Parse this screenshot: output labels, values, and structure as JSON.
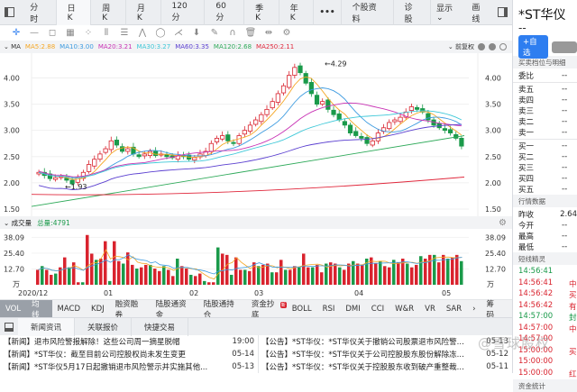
{
  "header": {
    "tabs": [
      {
        "label": "分时",
        "active": false
      },
      {
        "label": "日K",
        "active": true
      },
      {
        "label": "周K",
        "active": false
      },
      {
        "label": "月K",
        "active": false
      },
      {
        "label": "120分",
        "active": false
      },
      {
        "label": "60分",
        "active": false
      },
      {
        "label": "季K",
        "active": false
      },
      {
        "label": "年K",
        "active": false
      },
      {
        "label": "•••",
        "active": false
      },
      {
        "label": "个股资料",
        "active": false
      },
      {
        "label": "诊股",
        "active": false
      }
    ],
    "display_label": "显示 ⌄",
    "draw_label": "画线"
  },
  "toolbar": {
    "tools": [
      "crosshair-icon",
      "line-icon",
      "rect-icon",
      "fibonacci-icon",
      "pattern-icon",
      "vertical-lines-icon",
      "horizontal-lines-icon",
      "wave-icon",
      "circle-icon",
      "pitchfork-icon",
      "arrow-down-icon",
      "pen-icon",
      "magnet-icon",
      "trash-icon",
      "split-icon",
      "settings-icon"
    ],
    "tool_glyphs": [
      "✛",
      "—",
      "◻",
      "▦",
      "⁘",
      "⦀",
      "☰",
      "⋀",
      "◯",
      "⋌",
      "⬇",
      "✎",
      "∩",
      "🗑",
      "⇹",
      "⚙"
    ]
  },
  "ma_legend": {
    "label": "⌄ MA",
    "items": [
      {
        "text": "MA5:2.88",
        "color": "#f5a623"
      },
      {
        "text": "MA10:3.00",
        "color": "#3d9be0"
      },
      {
        "text": "MA20:3.21",
        "color": "#c832b4"
      },
      {
        "text": "MA30:3.27",
        "color": "#3ec8d8"
      },
      {
        "text": "MA60:3.35",
        "color": "#5a3fd0"
      },
      {
        "text": "MA120:2.68",
        "color": "#2faa5a"
      },
      {
        "text": "MA250:2.11",
        "color": "#e0283c"
      }
    ],
    "adjust_label": "⌄ 前复权"
  },
  "price_axis": {
    "labels": [
      "4.00",
      "3.50",
      "3.00",
      "2.50",
      "2.00",
      "1.50"
    ],
    "high_label": "4.29",
    "low_label": "1.93"
  },
  "volume": {
    "label": "⌄ 成交量",
    "total": "总量:4791",
    "axis": [
      "38.09",
      "25.40",
      "12.70",
      "万"
    ]
  },
  "x_axis": {
    "labels": [
      {
        "text": "2020/12",
        "x": 20
      },
      {
        "text": "01",
        "x": 115
      },
      {
        "text": "02",
        "x": 210
      },
      {
        "text": "03",
        "x": 282
      },
      {
        "text": "04",
        "x": 393
      },
      {
        "text": "05",
        "x": 490
      }
    ]
  },
  "indicators": {
    "items": [
      {
        "label": "VOL",
        "selected": true
      },
      {
        "label": "均线",
        "selected": true
      },
      {
        "label": "MACD"
      },
      {
        "label": "KDJ"
      },
      {
        "label": "融资融券"
      },
      {
        "label": "陆股通资金"
      },
      {
        "label": "陆股通持仓"
      },
      {
        "label": "资金抄底",
        "badge": "新"
      },
      {
        "label": "BOLL"
      },
      {
        "label": "RSI"
      },
      {
        "label": "DMI"
      },
      {
        "label": "CCI"
      },
      {
        "label": "W&R"
      },
      {
        "label": "VR"
      },
      {
        "label": "SAR"
      },
      {
        "label": "›"
      }
    ],
    "chips_label": "筹码"
  },
  "news_tabs": [
    "新闻资讯",
    "关联报价",
    "快捷交易"
  ],
  "news_left": [
    {
      "title": "【新闻】退市风险警报解除！这些公司周一摘星脱帽",
      "date": "19:00"
    },
    {
      "title": "【新闻】*ST华仪：截至目前公司控股权尚未发生变更",
      "date": "05-14"
    },
    {
      "title": "【新闻】*ST华仪5月17日起撤销退市风险警示并实施其他...",
      "date": "05-13"
    }
  ],
  "news_right": [
    {
      "title": "【公告】*ST华仪：*ST华仪关于撤销公司股票退市风险警...",
      "date": "05-13"
    },
    {
      "title": "【公告】*ST华仪：*ST华仪关于公司控股股东股份解除冻...",
      "date": "05-12"
    },
    {
      "title": "【公告】*ST华仪：*ST华仪关于控股股东收到破产重整裁...",
      "date": "05-11"
    }
  ],
  "sidebar": {
    "stock_name": "*ST华仪",
    "price": "--",
    "add_label": "+自选",
    "orderbook_title": "买卖档位与明细",
    "ratio": {
      "k": "委比",
      "v": "--"
    },
    "asks": [
      {
        "k": "卖五",
        "v": "--"
      },
      {
        "k": "卖四",
        "v": "--"
      },
      {
        "k": "卖三",
        "v": "--"
      },
      {
        "k": "卖二",
        "v": "--"
      },
      {
        "k": "卖一",
        "v": "--"
      }
    ],
    "bids": [
      {
        "k": "买一",
        "v": "--"
      },
      {
        "k": "买二",
        "v": "--"
      },
      {
        "k": "买三",
        "v": "--"
      },
      {
        "k": "买四",
        "v": "--"
      },
      {
        "k": "买五",
        "v": "--"
      }
    ],
    "quote_title": "行情数据",
    "quotes": [
      {
        "k": "昨收",
        "v": "2.64"
      },
      {
        "k": "今开",
        "v": "--"
      },
      {
        "k": "最高",
        "v": "--"
      },
      {
        "k": "最低",
        "v": "--"
      }
    ],
    "sprite_title": "短线精灵",
    "sprites": [
      {
        "t": "14:56:41",
        "c": "#1a9a4a",
        "x": ""
      },
      {
        "t": "14:56:41",
        "c": "#d9232e",
        "x": "中"
      },
      {
        "t": "14:56:42",
        "c": "#d9232e",
        "x": "买"
      },
      {
        "t": "14:56:42",
        "c": "#d9232e",
        "x": "有"
      },
      {
        "t": "14:57:00",
        "c": "#1a9a4a",
        "x": "封"
      },
      {
        "t": "14:57:00",
        "c": "#d9232e",
        "x": "中"
      },
      {
        "t": "14:57:00",
        "c": "#d9232e",
        "x": ""
      },
      {
        "t": "15:00:00",
        "c": "#d9232e",
        "x": "买"
      },
      {
        "t": "15:00:00",
        "c": "#d9232e",
        "x": ""
      },
      {
        "t": "15:00:00",
        "c": "#d9232e",
        "x": "红"
      }
    ],
    "footer_title": "资金统计"
  },
  "watermark": "@雪球股权",
  "chart_data": [
    {
      "type": "candlestick",
      "title": "*ST华仪 日K",
      "xlabel": "",
      "ylabel": "",
      "categories": [
        "2020/12",
        "01",
        "02",
        "03",
        "04",
        "05"
      ],
      "ylim": [
        1.5,
        4.3
      ],
      "y_ticks": [
        1.5,
        2.0,
        2.5,
        3.0,
        3.5,
        4.0
      ],
      "annotations": [
        {
          "text": "4.29",
          "type": "high"
        },
        {
          "text": "1.93",
          "type": "low"
        }
      ],
      "close_approx": [
        2.2,
        2.14,
        2.08,
        2.1,
        2.12,
        2.05,
        1.98,
        2.1,
        2.2,
        2.35,
        2.45,
        2.55,
        2.65,
        2.8,
        2.72,
        2.6,
        2.65,
        2.55,
        2.5,
        2.55,
        2.6,
        2.52,
        2.55,
        2.5,
        2.48,
        2.52,
        2.5,
        2.45,
        2.48,
        2.55,
        2.6,
        2.75,
        2.85,
        2.9,
        2.8,
        2.75,
        2.9,
        3.0,
        3.1,
        3.2,
        3.3,
        3.4,
        3.55,
        3.7,
        3.85,
        4.05,
        4.2,
        4.1,
        3.9,
        3.7,
        3.5,
        3.55,
        3.4,
        3.3,
        3.2,
        3.1,
        2.95,
        2.9,
        2.85,
        2.75,
        2.8,
        2.95,
        3.05,
        3.15,
        3.2,
        3.25,
        3.35,
        3.45,
        3.4,
        3.35,
        3.2,
        3.1,
        3.05,
        3.0,
        2.95,
        2.85,
        2.7
      ],
      "series": [
        {
          "name": "MA5",
          "last": 2.88,
          "color": "#f5a623"
        },
        {
          "name": "MA10",
          "last": 3.0,
          "color": "#3d9be0"
        },
        {
          "name": "MA20",
          "last": 3.21,
          "color": "#c832b4"
        },
        {
          "name": "MA30",
          "last": 3.27,
          "color": "#3ec8d8"
        },
        {
          "name": "MA60",
          "last": 3.35,
          "color": "#5a3fd0"
        },
        {
          "name": "MA120",
          "last": 2.68,
          "color": "#2faa5a"
        },
        {
          "name": "MA250",
          "last": 2.11,
          "color": "#e0283c"
        }
      ]
    },
    {
      "type": "bar",
      "title": "成交量",
      "ylabel": "万",
      "ylim": [
        0,
        42
      ],
      "y_ticks": [
        12.7,
        25.4,
        38.09
      ],
      "total": 4791,
      "values": [
        12,
        15,
        12,
        8,
        9,
        14,
        22,
        14,
        18,
        2,
        2,
        40,
        25,
        20,
        21,
        35,
        3,
        35,
        19,
        17,
        26,
        16,
        13,
        14,
        16,
        16,
        13,
        11,
        15,
        12,
        7,
        21,
        15,
        13,
        8,
        7,
        9,
        3,
        2,
        2,
        30,
        25,
        24,
        8,
        22,
        12,
        12,
        11,
        18,
        15,
        16,
        17,
        10,
        10,
        20,
        12,
        12,
        15,
        14,
        25,
        14,
        14,
        16,
        10,
        17,
        18,
        17,
        14,
        12,
        17,
        19,
        17,
        16,
        21,
        22,
        17,
        19,
        15,
        14,
        20,
        18,
        21,
        17,
        14,
        16,
        23,
        21,
        24,
        24,
        18,
        24,
        21,
        22,
        24,
        19
      ],
      "colors_pattern": "red=up, green=down"
    }
  ]
}
